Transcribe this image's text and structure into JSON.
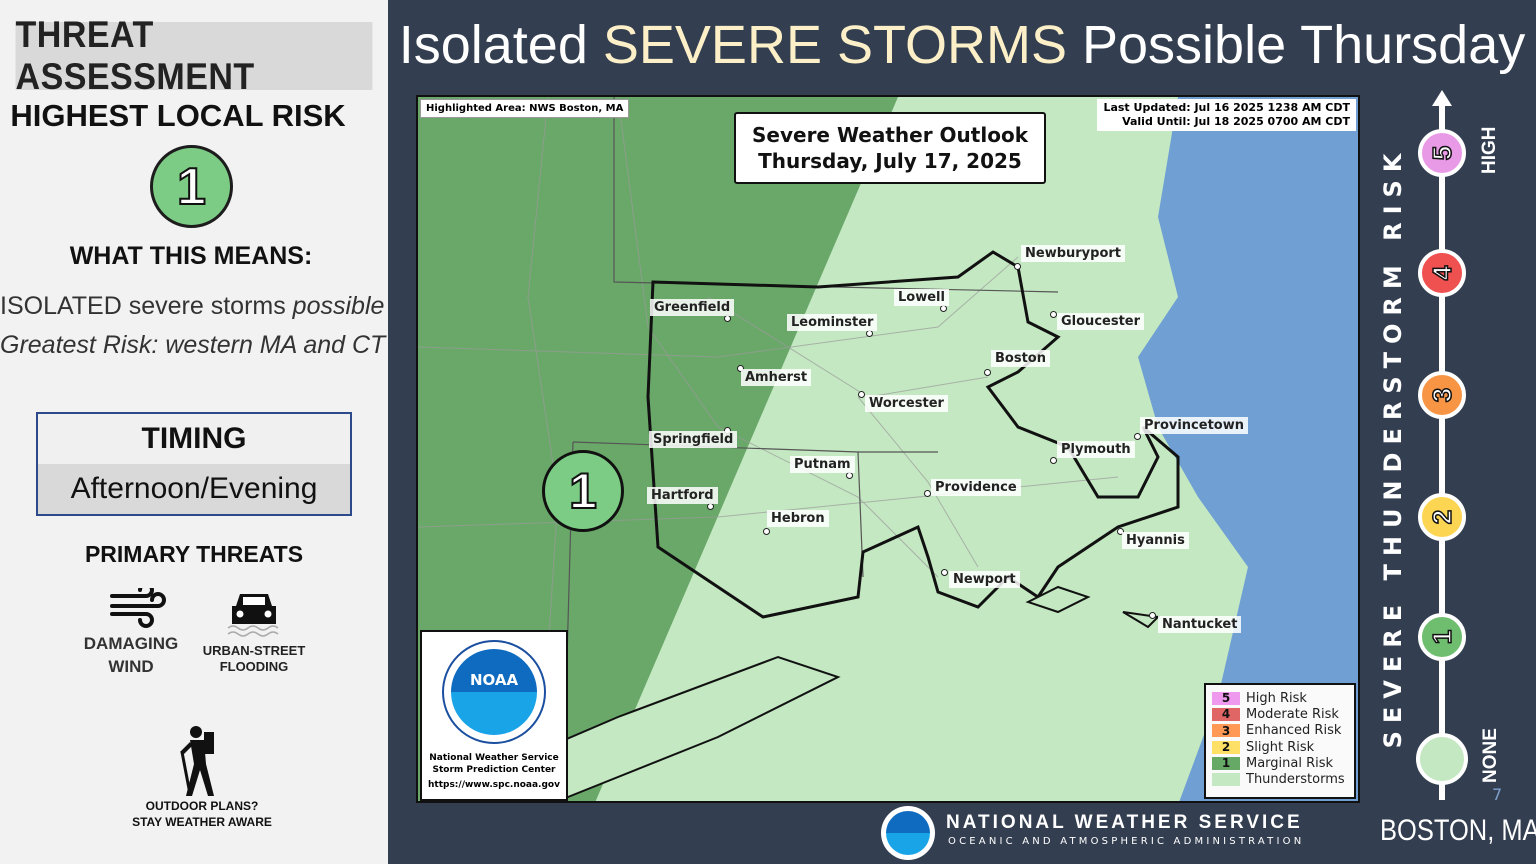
{
  "left": {
    "header": "THREAT ASSESSMENT",
    "highest_label": "HIGHEST LOCAL RISK",
    "highest_value": "1",
    "means_label": "WHAT THIS MEANS:",
    "means_line1_a": "ISOLATED severe storms ",
    "means_line1_b": "possible",
    "means_line2": "Greatest Risk: western MA and CT",
    "timing_label": "TIMING",
    "timing_value": "Afternoon/Evening",
    "threats_label": "PRIMARY THREATS",
    "threats": [
      {
        "icon": "wind-icon",
        "label1": "DAMAGING",
        "label2": "WIND"
      },
      {
        "icon": "car-flood-icon",
        "label1": "URBAN-STREET",
        "label2": "FLOODING"
      }
    ],
    "outdoor1": "OUTDOOR PLANS?",
    "outdoor2": "STAY WEATHER AWARE"
  },
  "title": {
    "a": "Isolated ",
    "b": "SEVERE STORMS",
    "c": " Possible Thursday"
  },
  "map": {
    "highlight": "Highlighted Area: NWS Boston, MA",
    "outlook_title": "Severe Weather Outlook",
    "outlook_date": "Thursday, July 17, 2025",
    "updated": "Last Updated: Jul 16 2025 1238 AM CDT",
    "valid": "Valid Until: Jul 18 2025 0700 AM CDT",
    "risk_marker": "1",
    "cities": [
      "Newburyport",
      "Lowell",
      "Greenfield",
      "Leominster",
      "Gloucester",
      "Boston",
      "Amherst",
      "Worcester",
      "Provincetown",
      "Springfield",
      "Plymouth",
      "Putnam",
      "Providence",
      "Hartford",
      "Hebron",
      "Hyannis",
      "Newport",
      "Nantucket"
    ],
    "noaa_logo": "NOAA",
    "noaa_line1": "National Weather Service",
    "noaa_line2": "Storm Prediction Center",
    "noaa_url": "https://www.spc.noaa.gov",
    "legend": [
      {
        "num": "5",
        "label": "High Risk",
        "color": "#ee99ee"
      },
      {
        "num": "4",
        "label": "Moderate Risk",
        "color": "#e06666"
      },
      {
        "num": "3",
        "label": "Enhanced Risk",
        "color": "#ff9955"
      },
      {
        "num": "2",
        "label": "Slight Risk",
        "color": "#ffe066"
      },
      {
        "num": "1",
        "label": "Marginal Risk",
        "color": "#66a866"
      },
      {
        "num": "",
        "label": "Thunderstorms",
        "color": "#c4e8c2"
      }
    ]
  },
  "scale": {
    "title": "SEVERE THUNDERSTORM RISK",
    "high": "HIGH",
    "none": "NONE",
    "levels": [
      {
        "n": "5",
        "color": "#e99ae6"
      },
      {
        "n": "4",
        "color": "#ef5050"
      },
      {
        "n": "3",
        "color": "#f79545"
      },
      {
        "n": "2",
        "color": "#fcd552"
      },
      {
        "n": "1",
        "color": "#6fbd6f"
      },
      {
        "n": "",
        "color": "#c4e8c2"
      }
    ]
  },
  "footer": {
    "nws1": "NATIONAL WEATHER SERVICE",
    "nws2": "OCEANIC AND ATMOSPHERIC ADMINISTRATION",
    "office": "BOSTON, MA",
    "page": "7"
  }
}
